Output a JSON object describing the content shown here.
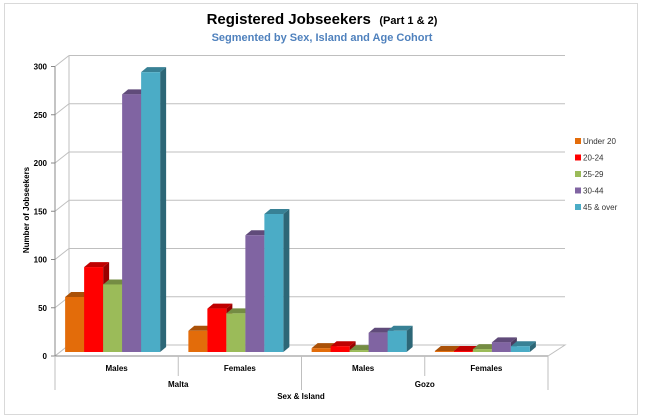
{
  "chart_data": {
    "type": "bar",
    "title": "Registered Jobseekers",
    "title_suffix": "(Part 1 & 2)",
    "subtitle": "Segmented by Sex, Island and Age Cohort",
    "xlabel": "Sex & Island",
    "ylabel": "Number of Jobseekers",
    "ylim": [
      0,
      300
    ],
    "yticks": [
      0,
      50,
      100,
      150,
      200,
      250,
      300
    ],
    "grid": true,
    "legend_position": "right",
    "categories": [
      "Males",
      "Females",
      "Males",
      "Females"
    ],
    "category_groups": [
      {
        "label": "Malta",
        "span": 2
      },
      {
        "label": "Gozo",
        "span": 2
      }
    ],
    "series": [
      {
        "name": "Under 20",
        "color": "#e36c0a",
        "values": [
          57,
          22,
          4,
          1
        ]
      },
      {
        "name": "20-24",
        "color": "#ff0000",
        "values": [
          88,
          45,
          6,
          1
        ]
      },
      {
        "name": "25-29",
        "color": "#9bbb59",
        "values": [
          70,
          40,
          2,
          3
        ]
      },
      {
        "name": "30-44",
        "color": "#8064a2",
        "values": [
          267,
          121,
          20,
          10
        ]
      },
      {
        "name": "45 & over",
        "color": "#4bacc6",
        "values": [
          290,
          143,
          22,
          6
        ]
      }
    ]
  }
}
